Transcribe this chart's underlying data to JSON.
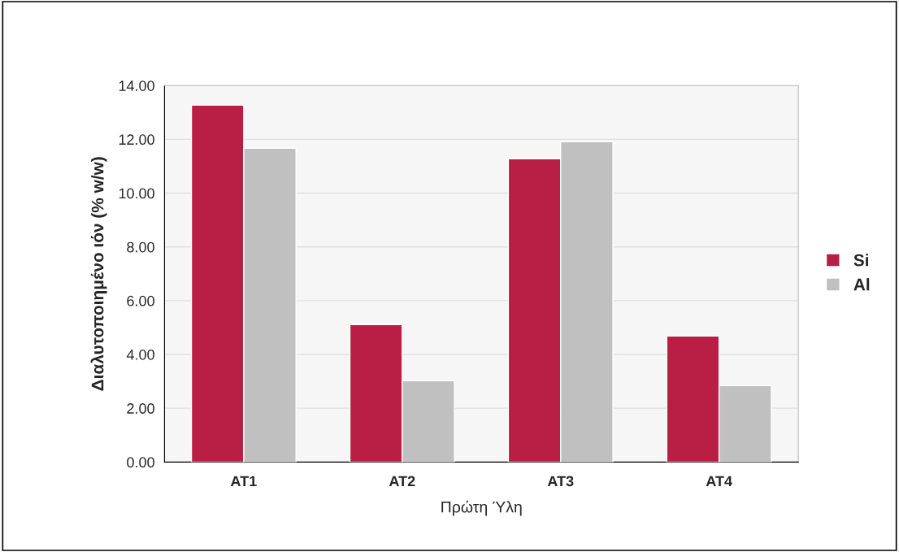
{
  "chart_data": {
    "type": "bar",
    "xlabel": "Πρώτη Ύλη",
    "ylabel": "Διαλυτοποιημένο ιόν (% w/w)",
    "categories": [
      "AT1",
      "AT2",
      "AT3",
      "AT4"
    ],
    "series": [
      {
        "name": "Si",
        "color": "#b91f44",
        "values": [
          13.27,
          5.11,
          11.28,
          4.69
        ]
      },
      {
        "name": "Al",
        "color": "#c0c0c0",
        "values": [
          11.67,
          3.02,
          11.91,
          2.84
        ]
      }
    ],
    "ylim": [
      0,
      14
    ],
    "yticks": [
      {
        "value": 0,
        "label": "0.00"
      },
      {
        "value": 2,
        "label": "2.00"
      },
      {
        "value": 4,
        "label": "4.00"
      },
      {
        "value": 6,
        "label": "6.00"
      },
      {
        "value": 8,
        "label": "8.00"
      },
      {
        "value": 10,
        "label": "10.00"
      },
      {
        "value": 12,
        "label": "12.00"
      },
      {
        "value": 14,
        "label": "14.00"
      }
    ],
    "grid": "y",
    "legend": "right"
  }
}
